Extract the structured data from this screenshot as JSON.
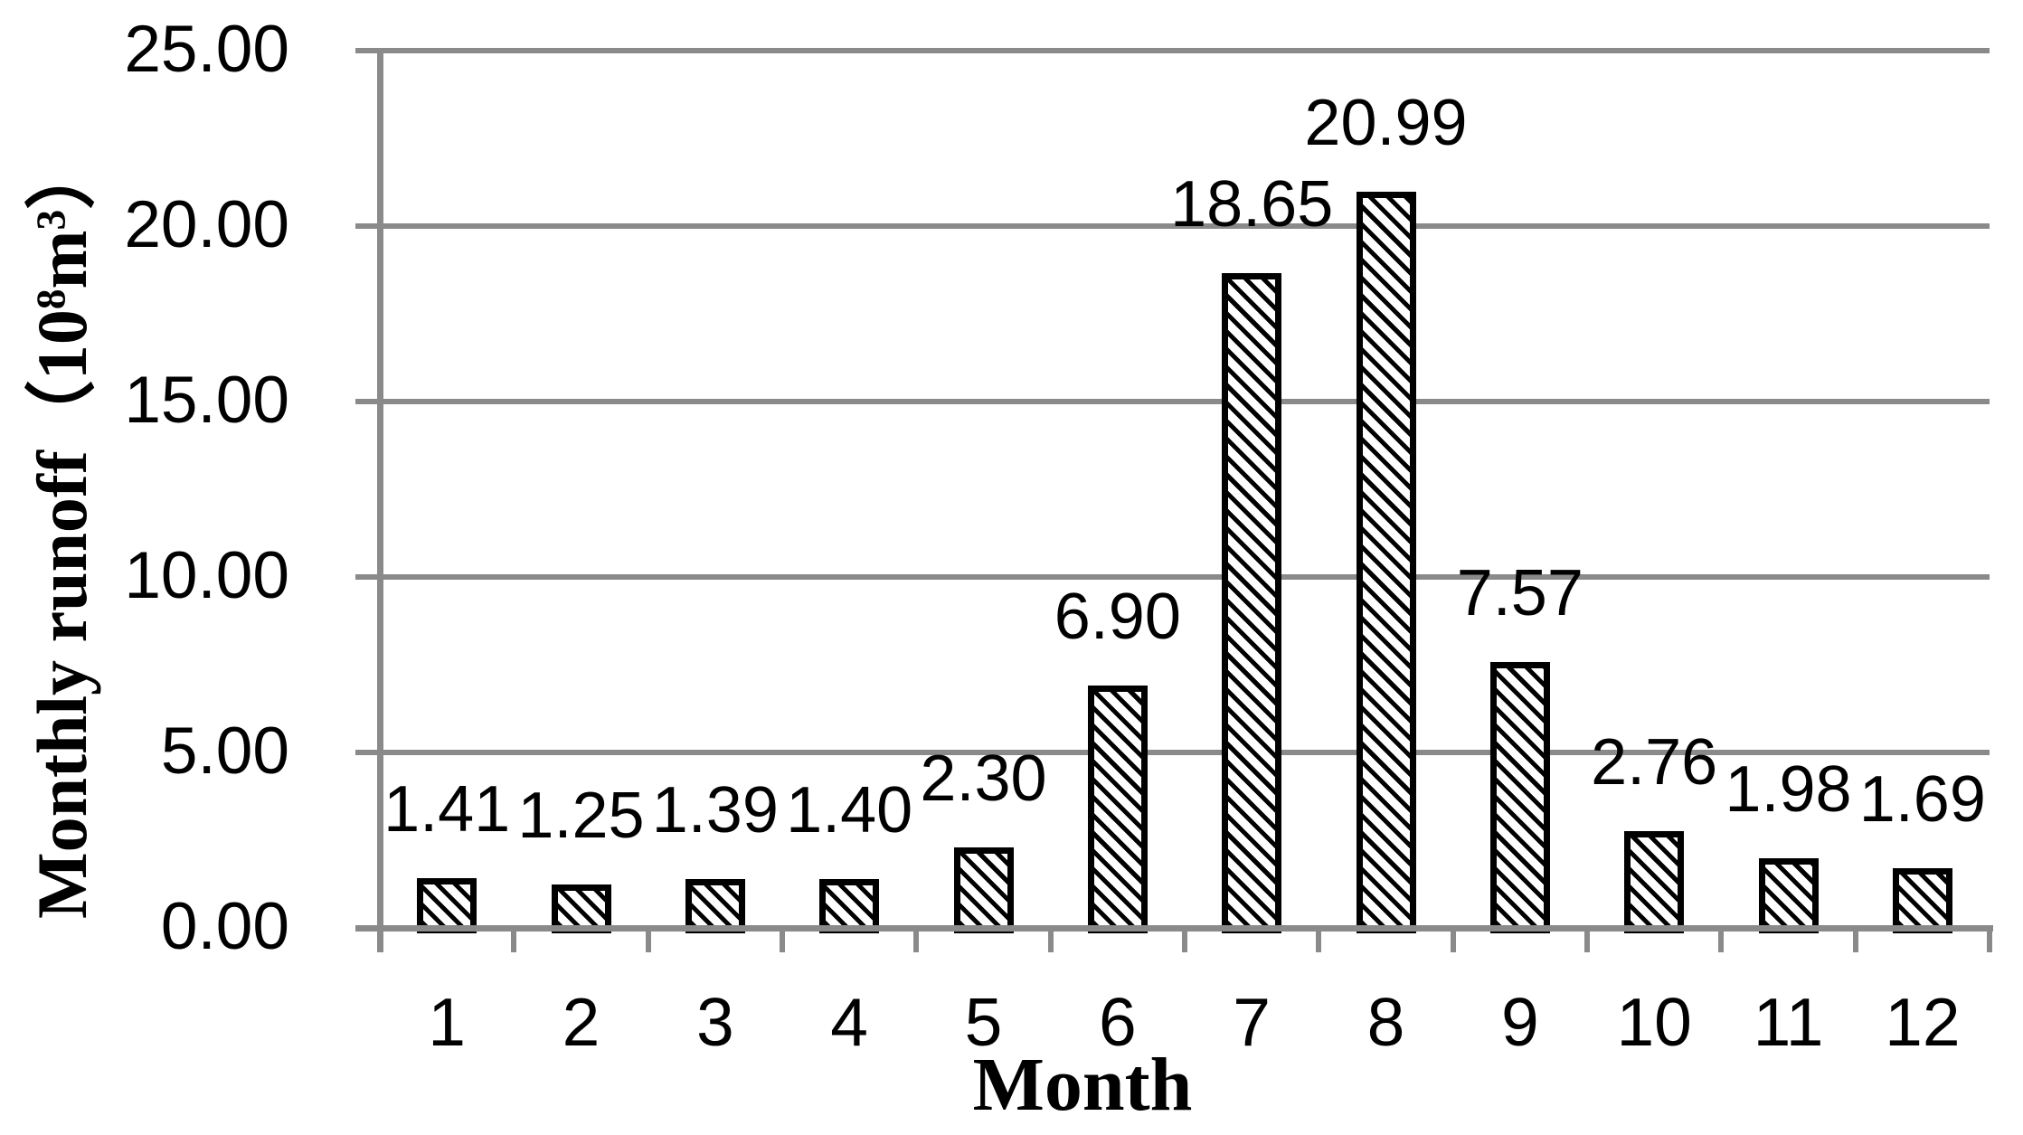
{
  "chart_data": {
    "type": "bar",
    "title": "",
    "categories": [
      "1",
      "2",
      "3",
      "4",
      "5",
      "6",
      "7",
      "8",
      "9",
      "10",
      "11",
      "12"
    ],
    "values": [
      1.41,
      1.25,
      1.39,
      1.4,
      2.3,
      6.9,
      18.65,
      20.99,
      7.57,
      2.76,
      1.98,
      1.69
    ],
    "data_labels": [
      "1.41",
      "1.25",
      "1.39",
      "1.40",
      "2.30",
      "6.90",
      "18.65",
      "20.99",
      "7.57",
      "2.76",
      "1.98",
      "1.69"
    ],
    "xlabel": "Month",
    "ylabel_plain": "Monthly runoff（10⁸m³）",
    "ylabel_parts": [
      {
        "text": "Monthly runoff（10"
      },
      {
        "text": "8",
        "sup": true
      },
      {
        "text": "m"
      },
      {
        "text": "3",
        "sup": true
      },
      {
        "text": "）"
      }
    ],
    "yticks": [
      "25.00",
      "20.00",
      "15.00",
      "10.00",
      "5.00",
      "0.00"
    ],
    "ylim": [
      0,
      25
    ],
    "ytick_step": 5,
    "grid": true,
    "legend": "none",
    "bar_style": {
      "fill": "diagonal-hatch",
      "hatch_direction": "down-right",
      "hatch_color": "#000000",
      "background": "#ffffff",
      "border_color": "#000000"
    },
    "axis_color": "#8A8A8A",
    "text_color": "#000000"
  }
}
